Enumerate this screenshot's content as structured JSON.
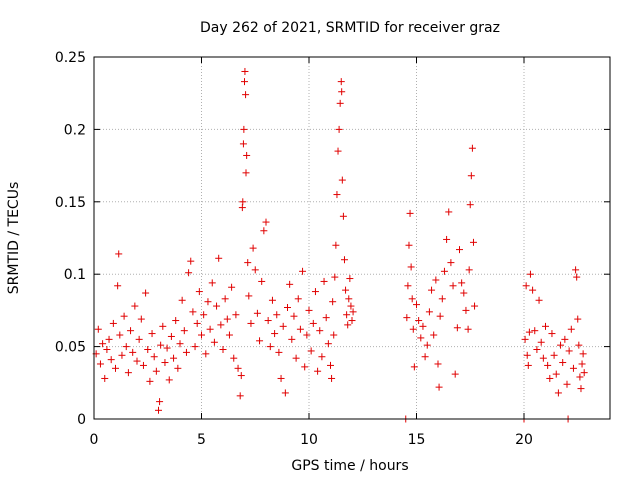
{
  "chart_data": {
    "type": "scatter",
    "title": "Day 262 of 2021, SRMTID for receiver graz",
    "xlabel": "GPS time / hours",
    "ylabel": "SRMTID / TECUs",
    "xlim": [
      0,
      24
    ],
    "ylim": [
      0,
      0.25
    ],
    "xticks": [
      0,
      5,
      10,
      15,
      20
    ],
    "xtick_labels": [
      "0",
      "5",
      "10",
      "15",
      "20"
    ],
    "yticks": [
      0,
      0.05,
      0.1,
      0.15,
      0.2,
      0.25
    ],
    "ytick_labels": [
      "0",
      "0.05",
      "0.1",
      "0.15",
      "0.2",
      "0.25"
    ],
    "grid": true,
    "marker": "+",
    "color": "#e00000",
    "series": [
      {
        "name": "SRMTID",
        "points": [
          [
            0.1,
            0.045
          ],
          [
            0.2,
            0.062
          ],
          [
            0.3,
            0.038
          ],
          [
            0.4,
            0.052
          ],
          [
            0.5,
            0.028
          ],
          [
            0.6,
            0.048
          ],
          [
            0.7,
            0.055
          ],
          [
            0.8,
            0.041
          ],
          [
            0.9,
            0.066
          ],
          [
            1.0,
            0.035
          ],
          [
            1.1,
            0.092
          ],
          [
            1.15,
            0.114
          ],
          [
            1.2,
            0.058
          ],
          [
            1.3,
            0.044
          ],
          [
            1.4,
            0.071
          ],
          [
            1.5,
            0.05
          ],
          [
            1.6,
            0.032
          ],
          [
            1.7,
            0.061
          ],
          [
            1.8,
            0.046
          ],
          [
            1.9,
            0.078
          ],
          [
            2.0,
            0.04
          ],
          [
            2.1,
            0.055
          ],
          [
            2.2,
            0.069
          ],
          [
            2.3,
            0.037
          ],
          [
            2.4,
            0.087
          ],
          [
            2.5,
            0.048
          ],
          [
            2.6,
            0.026
          ],
          [
            2.7,
            0.059
          ],
          [
            2.8,
            0.043
          ],
          [
            2.9,
            0.033
          ],
          [
            3.0,
            0.006
          ],
          [
            3.05,
            0.012
          ],
          [
            3.1,
            0.051
          ],
          [
            3.2,
            0.064
          ],
          [
            3.3,
            0.039
          ],
          [
            3.4,
            0.049
          ],
          [
            3.5,
            0.027
          ],
          [
            3.6,
            0.057
          ],
          [
            3.7,
            0.042
          ],
          [
            3.8,
            0.068
          ],
          [
            3.9,
            0.035
          ],
          [
            4.0,
            0.052
          ],
          [
            4.1,
            0.082
          ],
          [
            4.2,
            0.061
          ],
          [
            4.3,
            0.046
          ],
          [
            4.4,
            0.101
          ],
          [
            4.5,
            0.109
          ],
          [
            4.6,
            0.074
          ],
          [
            4.7,
            0.05
          ],
          [
            4.8,
            0.066
          ],
          [
            4.9,
            0.088
          ],
          [
            5.0,
            0.058
          ],
          [
            5.1,
            0.072
          ],
          [
            5.2,
            0.045
          ],
          [
            5.3,
            0.081
          ],
          [
            5.4,
            0.062
          ],
          [
            5.5,
            0.094
          ],
          [
            5.6,
            0.053
          ],
          [
            5.7,
            0.078
          ],
          [
            5.8,
            0.111
          ],
          [
            5.9,
            0.065
          ],
          [
            6.0,
            0.048
          ],
          [
            6.1,
            0.083
          ],
          [
            6.2,
            0.069
          ],
          [
            6.3,
            0.058
          ],
          [
            6.4,
            0.091
          ],
          [
            6.5,
            0.042
          ],
          [
            6.6,
            0.072
          ],
          [
            6.7,
            0.035
          ],
          [
            6.8,
            0.016
          ],
          [
            6.85,
            0.03
          ],
          [
            6.9,
            0.146
          ],
          [
            6.92,
            0.15
          ],
          [
            6.95,
            0.19
          ],
          [
            6.97,
            0.2
          ],
          [
            7.0,
            0.233
          ],
          [
            7.02,
            0.24
          ],
          [
            7.05,
            0.224
          ],
          [
            7.07,
            0.17
          ],
          [
            7.1,
            0.182
          ],
          [
            7.15,
            0.108
          ],
          [
            7.2,
            0.085
          ],
          [
            7.3,
            0.066
          ],
          [
            7.4,
            0.118
          ],
          [
            7.5,
            0.103
          ],
          [
            7.6,
            0.073
          ],
          [
            7.7,
            0.054
          ],
          [
            7.8,
            0.095
          ],
          [
            7.9,
            0.13
          ],
          [
            8.0,
            0.136
          ],
          [
            8.1,
            0.068
          ],
          [
            8.2,
            0.05
          ],
          [
            8.3,
            0.082
          ],
          [
            8.4,
            0.059
          ],
          [
            8.5,
            0.072
          ],
          [
            8.6,
            0.046
          ],
          [
            8.7,
            0.028
          ],
          [
            8.8,
            0.064
          ],
          [
            8.9,
            0.018
          ],
          [
            9.0,
            0.077
          ],
          [
            9.1,
            0.093
          ],
          [
            9.2,
            0.055
          ],
          [
            9.3,
            0.071
          ],
          [
            9.4,
            0.042
          ],
          [
            9.5,
            0.083
          ],
          [
            9.6,
            0.062
          ],
          [
            9.7,
            0.102
          ],
          [
            9.8,
            0.036
          ],
          [
            9.9,
            0.058
          ],
          [
            10.0,
            0.075
          ],
          [
            10.1,
            0.047
          ],
          [
            10.2,
            0.066
          ],
          [
            10.3,
            0.088
          ],
          [
            10.4,
            0.033
          ],
          [
            10.5,
            0.061
          ],
          [
            10.6,
            0.043
          ],
          [
            10.7,
            0.095
          ],
          [
            10.8,
            0.07
          ],
          [
            10.9,
            0.052
          ],
          [
            11.0,
            0.037
          ],
          [
            11.05,
            0.028
          ],
          [
            11.1,
            0.081
          ],
          [
            11.15,
            0.058
          ],
          [
            11.2,
            0.098
          ],
          [
            11.25,
            0.12
          ],
          [
            11.3,
            0.155
          ],
          [
            11.35,
            0.185
          ],
          [
            11.4,
            0.2
          ],
          [
            11.45,
            0.218
          ],
          [
            11.5,
            0.233
          ],
          [
            11.52,
            0.226
          ],
          [
            11.55,
            0.165
          ],
          [
            11.6,
            0.14
          ],
          [
            11.65,
            0.11
          ],
          [
            11.7,
            0.089
          ],
          [
            11.75,
            0.072
          ],
          [
            11.8,
            0.065
          ],
          [
            11.85,
            0.083
          ],
          [
            11.9,
            0.097
          ],
          [
            11.95,
            0.078
          ],
          [
            12.0,
            0.068
          ],
          [
            12.05,
            0.074
          ],
          [
            14.5,
            0.0
          ],
          [
            14.55,
            0.07
          ],
          [
            14.6,
            0.092
          ],
          [
            14.65,
            0.12
          ],
          [
            14.7,
            0.142
          ],
          [
            14.75,
            0.105
          ],
          [
            14.8,
            0.083
          ],
          [
            14.85,
            0.062
          ],
          [
            14.9,
            0.036
          ],
          [
            15.0,
            0.079
          ],
          [
            15.1,
            0.068
          ],
          [
            15.2,
            0.056
          ],
          [
            15.3,
            0.064
          ],
          [
            15.4,
            0.043
          ],
          [
            15.5,
            0.051
          ],
          [
            15.6,
            0.074
          ],
          [
            15.7,
            0.089
          ],
          [
            15.8,
            0.058
          ],
          [
            15.9,
            0.096
          ],
          [
            16.0,
            0.038
          ],
          [
            16.05,
            0.022
          ],
          [
            16.1,
            0.071
          ],
          [
            16.2,
            0.083
          ],
          [
            16.3,
            0.102
          ],
          [
            16.4,
            0.124
          ],
          [
            16.5,
            0.143
          ],
          [
            16.6,
            0.108
          ],
          [
            16.7,
            0.092
          ],
          [
            16.8,
            0.031
          ],
          [
            16.9,
            0.063
          ],
          [
            17.0,
            0.117
          ],
          [
            17.1,
            0.094
          ],
          [
            17.2,
            0.087
          ],
          [
            17.3,
            0.075
          ],
          [
            17.4,
            0.062
          ],
          [
            17.45,
            0.103
          ],
          [
            17.5,
            0.148
          ],
          [
            17.55,
            0.168
          ],
          [
            17.6,
            0.187
          ],
          [
            17.65,
            0.122
          ],
          [
            17.7,
            0.078
          ],
          [
            20.0,
            0.0
          ],
          [
            20.05,
            0.055
          ],
          [
            20.1,
            0.092
          ],
          [
            20.15,
            0.044
          ],
          [
            20.2,
            0.037
          ],
          [
            20.25,
            0.06
          ],
          [
            20.3,
            0.1
          ],
          [
            20.4,
            0.089
          ],
          [
            20.5,
            0.061
          ],
          [
            20.6,
            0.048
          ],
          [
            20.7,
            0.082
          ],
          [
            20.8,
            0.053
          ],
          [
            20.9,
            0.042
          ],
          [
            21.0,
            0.064
          ],
          [
            21.1,
            0.037
          ],
          [
            21.2,
            0.028
          ],
          [
            21.3,
            0.059
          ],
          [
            21.4,
            0.044
          ],
          [
            21.5,
            0.031
          ],
          [
            21.6,
            0.018
          ],
          [
            21.7,
            0.051
          ],
          [
            21.8,
            0.039
          ],
          [
            21.9,
            0.055
          ],
          [
            22.0,
            0.024
          ],
          [
            22.05,
            0.0
          ],
          [
            22.1,
            0.047
          ],
          [
            22.2,
            0.062
          ],
          [
            22.3,
            0.035
          ],
          [
            22.4,
            0.103
          ],
          [
            22.45,
            0.098
          ],
          [
            22.5,
            0.069
          ],
          [
            22.55,
            0.051
          ],
          [
            22.6,
            0.029
          ],
          [
            22.65,
            0.021
          ],
          [
            22.7,
            0.038
          ],
          [
            22.75,
            0.045
          ],
          [
            22.8,
            0.032
          ]
        ]
      }
    ]
  }
}
